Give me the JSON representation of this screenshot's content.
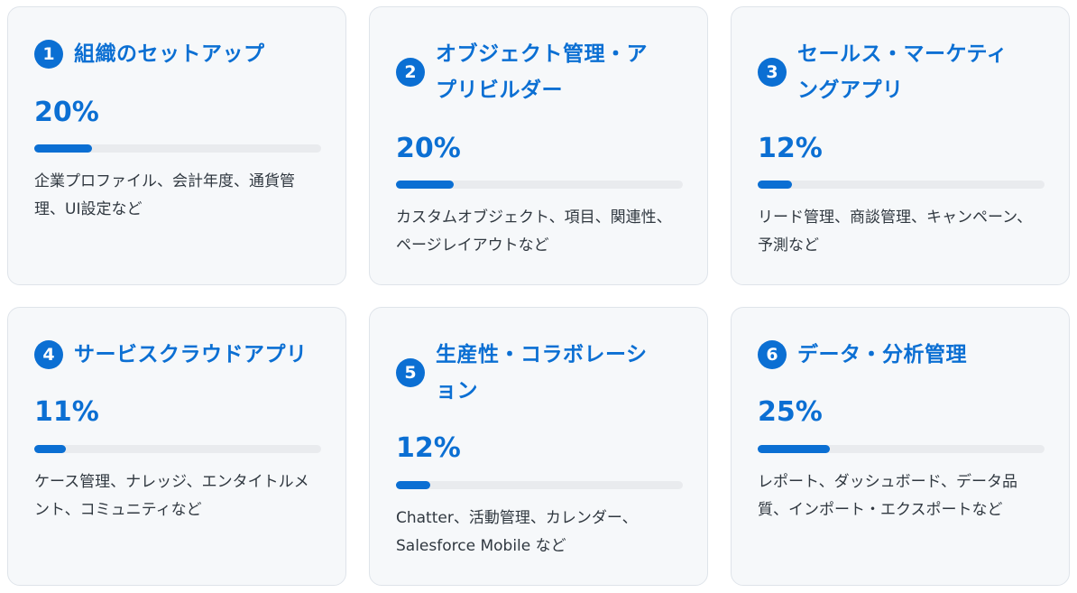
{
  "cards": [
    {
      "number": "1",
      "title": "組織のセットアップ",
      "percent_label": "20%",
      "percent_value": 20,
      "description": "企業プロファイル、会計年度、通貨管理、UI設定など"
    },
    {
      "number": "2",
      "title": "オブジェクト管理・アプリビルダー",
      "percent_label": "20%",
      "percent_value": 20,
      "description": "カスタムオブジェクト、項目、関連性、ページレイアウトなど"
    },
    {
      "number": "3",
      "title": "セールス・マーケティングアプリ",
      "percent_label": "12%",
      "percent_value": 12,
      "description": "リード管理、商談管理、キャンペーン、予測など"
    },
    {
      "number": "4",
      "title": "サービスクラウドアプリ",
      "percent_label": "11%",
      "percent_value": 11,
      "description": "ケース管理、ナレッジ、エンタイトルメント、コミュニティなど"
    },
    {
      "number": "5",
      "title": "生産性・コラボレーション",
      "percent_label": "12%",
      "percent_value": 12,
      "description": "Chatter、活動管理、カレンダー、Salesforce Mobile など"
    },
    {
      "number": "6",
      "title": "データ・分析管理",
      "percent_label": "25%",
      "percent_value": 25,
      "description": "レポート、ダッシュボード、データ品質、インポート・エクスポートなど"
    }
  ]
}
